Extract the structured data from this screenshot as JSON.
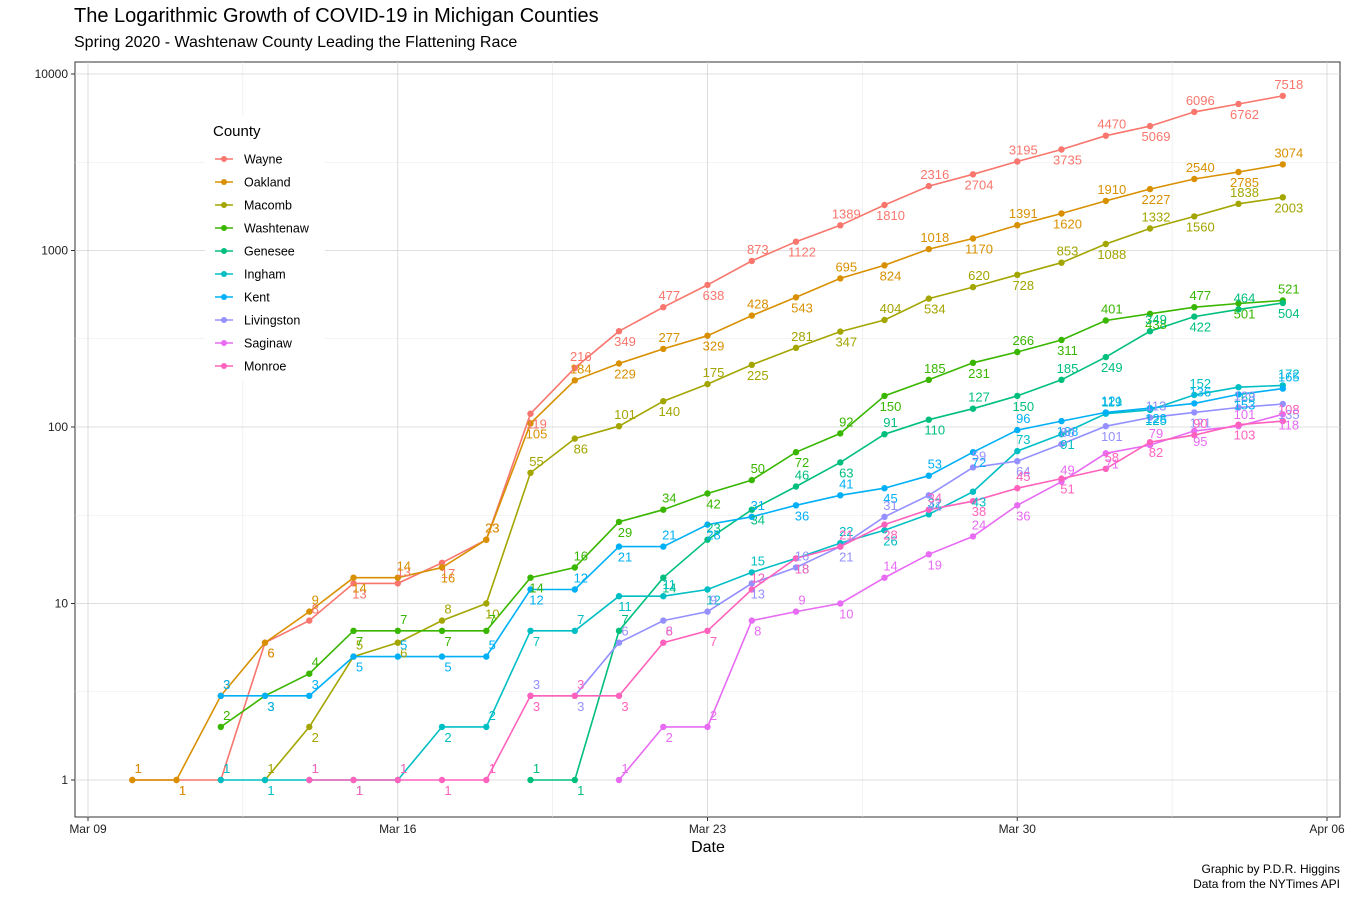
{
  "title": "The Logarithmic Growth of COVID-19 in Michigan Counties",
  "subtitle": "Spring 2020 - Washtenaw County Leading the Flattening Race",
  "caption": [
    "Graphic by P.D.R. Higgins",
    "Data from the NYTimes API"
  ],
  "chart_data": {
    "type": "line",
    "title": "The Logarithmic Growth of COVID-19 in Michigan Counties",
    "subtitle": "Spring 2020 - Washtenaw County Leading the Flattening Race",
    "xlabel": "Date",
    "ylabel": "",
    "yscale": "log10",
    "ylim": [
      1,
      10000
    ],
    "xlim": [
      "2020-03-09",
      "2020-04-06"
    ],
    "x_ticks": [
      "Mar 09",
      "Mar 16",
      "Mar 23",
      "Mar 30",
      "Apr 06"
    ],
    "y_ticks": [
      "1",
      "10",
      "100",
      "1000",
      "10000"
    ],
    "grid": true,
    "legend": {
      "title": "County",
      "position": "top-left"
    },
    "series": [
      {
        "name": "Wayne",
        "color": "#F8766D",
        "x": [
          "2020-03-10",
          "2020-03-11",
          "2020-03-12",
          "2020-03-13",
          "2020-03-14",
          "2020-03-15",
          "2020-03-16",
          "2020-03-17",
          "2020-03-18",
          "2020-03-19",
          "2020-03-20",
          "2020-03-21",
          "2020-03-22",
          "2020-03-23",
          "2020-03-24",
          "2020-03-25",
          "2020-03-26",
          "2020-03-27",
          "2020-03-28",
          "2020-03-29",
          "2020-03-30",
          "2020-03-31",
          "2020-04-01",
          "2020-04-02",
          "2020-04-03",
          "2020-04-04",
          "2020-04-05"
        ],
        "values": [
          1,
          1,
          1,
          6,
          8,
          13,
          13,
          17,
          23,
          119,
          216,
          349,
          477,
          638,
          873,
          1122,
          1389,
          1810,
          2316,
          2704,
          3195,
          3735,
          4470,
          5069,
          6096,
          6762,
          7518
        ]
      },
      {
        "name": "Oakland",
        "color": "#D89000",
        "x": [
          "2020-03-10",
          "2020-03-11",
          "2020-03-12",
          "2020-03-13",
          "2020-03-14",
          "2020-03-15",
          "2020-03-16",
          "2020-03-17",
          "2020-03-18",
          "2020-03-19",
          "2020-03-20",
          "2020-03-21",
          "2020-03-22",
          "2020-03-23",
          "2020-03-24",
          "2020-03-25",
          "2020-03-26",
          "2020-03-27",
          "2020-03-28",
          "2020-03-29",
          "2020-03-30",
          "2020-03-31",
          "2020-04-01",
          "2020-04-02",
          "2020-04-03",
          "2020-04-04",
          "2020-04-05"
        ],
        "values": [
          1,
          1,
          3,
          6,
          9,
          14,
          14,
          16,
          23,
          105,
          184,
          229,
          277,
          329,
          428,
          543,
          695,
          824,
          1018,
          1170,
          1391,
          1620,
          1910,
          2227,
          2540,
          2785,
          3074
        ]
      },
      {
        "name": "Macomb",
        "color": "#A3A500",
        "x": [
          "2020-03-13",
          "2020-03-14",
          "2020-03-15",
          "2020-03-16",
          "2020-03-17",
          "2020-03-18",
          "2020-03-19",
          "2020-03-20",
          "2020-03-21",
          "2020-03-22",
          "2020-03-23",
          "2020-03-24",
          "2020-03-25",
          "2020-03-26",
          "2020-03-27",
          "2020-03-28",
          "2020-03-29",
          "2020-03-30",
          "2020-03-31",
          "2020-04-01",
          "2020-04-02",
          "2020-04-03",
          "2020-04-04",
          "2020-04-05"
        ],
        "values": [
          1,
          2,
          5,
          6,
          8,
          10,
          55,
          86,
          101,
          140,
          175,
          225,
          281,
          347,
          404,
          534,
          620,
          728,
          853,
          1088,
          1332,
          1560,
          1838,
          2003
        ]
      },
      {
        "name": "Washtenaw",
        "color": "#39B600",
        "x": [
          "2020-03-12",
          "2020-03-13",
          "2020-03-14",
          "2020-03-15",
          "2020-03-16",
          "2020-03-17",
          "2020-03-18",
          "2020-03-19",
          "2020-03-20",
          "2020-03-21",
          "2020-03-22",
          "2020-03-23",
          "2020-03-24",
          "2020-03-25",
          "2020-03-26",
          "2020-03-27",
          "2020-03-28",
          "2020-03-29",
          "2020-03-30",
          "2020-03-31",
          "2020-04-01",
          "2020-04-02",
          "2020-04-03",
          "2020-04-04",
          "2020-04-05"
        ],
        "values": [
          2,
          3,
          4,
          7,
          7,
          7,
          7,
          14,
          16,
          29,
          34,
          42,
          50,
          72,
          92,
          150,
          185,
          231,
          266,
          311,
          401,
          438,
          477,
          501,
          521
        ]
      },
      {
        "name": "Genesee",
        "color": "#00BF7D",
        "x": [
          "2020-03-19",
          "2020-03-20",
          "2020-03-21",
          "2020-03-22",
          "2020-03-23",
          "2020-03-24",
          "2020-03-25",
          "2020-03-26",
          "2020-03-27",
          "2020-03-28",
          "2020-03-29",
          "2020-03-30",
          "2020-03-31",
          "2020-04-01",
          "2020-04-02",
          "2020-04-03",
          "2020-04-04",
          "2020-04-05"
        ],
        "values": [
          1,
          1,
          7,
          14,
          23,
          34,
          46,
          63,
          91,
          110,
          127,
          150,
          185,
          249,
          349,
          422,
          464,
          504
        ]
      },
      {
        "name": "Ingham",
        "color": "#00BFC4",
        "x": [
          "2020-03-12",
          "2020-03-13",
          "2020-03-14",
          "2020-03-15",
          "2020-03-16",
          "2020-03-17",
          "2020-03-18",
          "2020-03-19",
          "2020-03-20",
          "2020-03-21",
          "2020-03-22",
          "2020-03-23",
          "2020-03-24",
          "2020-03-25",
          "2020-03-26",
          "2020-03-27",
          "2020-03-28",
          "2020-03-29",
          "2020-03-30",
          "2020-03-31",
          "2020-04-01",
          "2020-04-02",
          "2020-04-03",
          "2020-04-04",
          "2020-04-05"
        ],
        "values": [
          1,
          1,
          1,
          1,
          1,
          2,
          2,
          7,
          7,
          11,
          11,
          12,
          15,
          18,
          22,
          26,
          32,
          43,
          73,
          91,
          119,
          125,
          152,
          168,
          172
        ]
      },
      {
        "name": "Kent",
        "color": "#00B0F6",
        "x": [
          "2020-03-12",
          "2020-03-13",
          "2020-03-14",
          "2020-03-15",
          "2020-03-16",
          "2020-03-17",
          "2020-03-18",
          "2020-03-19",
          "2020-03-20",
          "2020-03-21",
          "2020-03-22",
          "2020-03-23",
          "2020-03-24",
          "2020-03-25",
          "2020-03-26",
          "2020-03-27",
          "2020-03-28",
          "2020-03-29",
          "2020-03-30",
          "2020-03-31",
          "2020-04-01",
          "2020-04-02",
          "2020-04-03",
          "2020-04-04",
          "2020-04-05"
        ],
        "values": [
          3,
          3,
          3,
          5,
          5,
          5,
          5,
          12,
          12,
          21,
          21,
          28,
          31,
          36,
          41,
          45,
          53,
          72,
          96,
          108,
          121,
          128,
          136,
          153,
          165
        ]
      },
      {
        "name": "Livingston",
        "color": "#9590FF",
        "x": [
          "2020-03-19",
          "2020-03-20",
          "2020-03-21",
          "2020-03-22",
          "2020-03-23",
          "2020-03-24",
          "2020-03-25",
          "2020-03-26",
          "2020-03-27",
          "2020-03-28",
          "2020-03-29",
          "2020-03-30",
          "2020-03-31",
          "2020-04-01",
          "2020-04-02",
          "2020-04-03",
          "2020-04-04",
          "2020-04-05"
        ],
        "values": [
          3,
          3,
          6,
          8,
          9,
          13,
          16,
          21,
          31,
          41,
          59,
          64,
          80,
          101,
          113,
          121,
          129,
          135
        ]
      },
      {
        "name": "Saginaw",
        "color": "#E76BF3",
        "x": [
          "2020-03-21",
          "2020-03-22",
          "2020-03-23",
          "2020-03-24",
          "2020-03-25",
          "2020-03-26",
          "2020-03-27",
          "2020-03-28",
          "2020-03-29",
          "2020-03-30",
          "2020-03-31",
          "2020-04-01",
          "2020-04-02",
          "2020-04-03",
          "2020-04-04",
          "2020-04-05"
        ],
        "values": [
          1,
          2,
          2,
          8,
          9,
          10,
          14,
          19,
          24,
          36,
          49,
          71,
          79,
          95,
          101,
          118
        ]
      },
      {
        "name": "Monroe",
        "color": "#FF62BC",
        "x": [
          "2020-03-14",
          "2020-03-15",
          "2020-03-16",
          "2020-03-17",
          "2020-03-18",
          "2020-03-19",
          "2020-03-20",
          "2020-03-21",
          "2020-03-22",
          "2020-03-23",
          "2020-03-24",
          "2020-03-25",
          "2020-03-26",
          "2020-03-27",
          "2020-03-28",
          "2020-03-29",
          "2020-03-30",
          "2020-03-31",
          "2020-04-01",
          "2020-04-02",
          "2020-04-03",
          "2020-04-04",
          "2020-04-05"
        ],
        "values": [
          1,
          1,
          1,
          1,
          1,
          3,
          3,
          3,
          6,
          7,
          12,
          18,
          21,
          28,
          34,
          38,
          45,
          51,
          58,
          82,
          90,
          103,
          108
        ]
      }
    ]
  }
}
